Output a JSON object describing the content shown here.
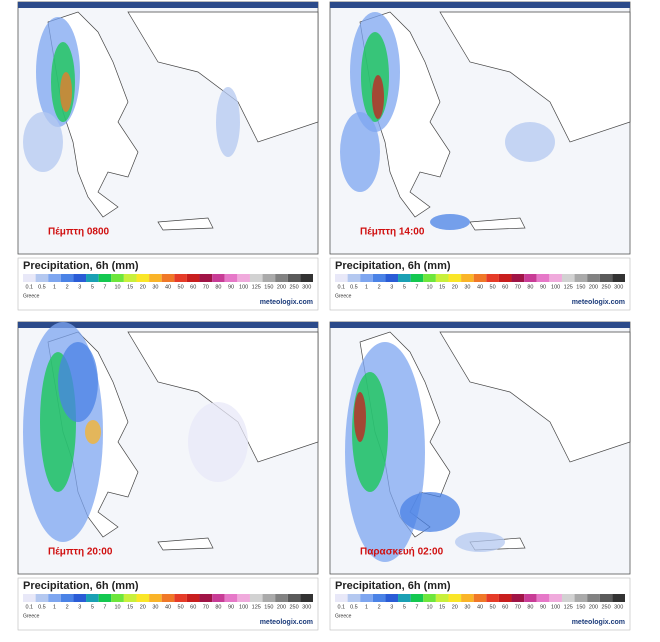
{
  "panels": [
    {
      "label": "Πέμπτη 0800",
      "title": "Precipitation, 6h (mm)",
      "region": "Greece",
      "brand": "meteologix.com"
    },
    {
      "label": "Πέμπτη 14:00",
      "title": "Precipitation, 6h (mm)",
      "region": "Greece",
      "brand": "meteologix.com"
    },
    {
      "label": "Πέμπτη 20:00",
      "title": "Precipitation, 6h (mm)",
      "region": "Greece",
      "brand": "meteologix.com"
    },
    {
      "label": "Παρασκευή 02:00",
      "title": "Precipitation, 6h (mm)",
      "region": "Greece",
      "brand": "meteologix.com"
    }
  ],
  "scale": {
    "labels": [
      "0.1",
      "0.5",
      "1",
      "2",
      "3",
      "5",
      "7",
      "10",
      "15",
      "20",
      "30",
      "40",
      "50",
      "60",
      "70",
      "80",
      "90",
      "100",
      "125",
      "150",
      "200",
      "250",
      "300"
    ],
    "colors": [
      "#e8e8f8",
      "#b4c8f0",
      "#7ea6f0",
      "#4a82e6",
      "#2a5cd6",
      "#1aa0b4",
      "#14c850",
      "#6ee63c",
      "#c8f03c",
      "#fae628",
      "#fab428",
      "#f07828",
      "#e63c28",
      "#c81e1e",
      "#a01446",
      "#c83c96",
      "#e678c8",
      "#f0aadc",
      "#d2d2d2",
      "#aaaaaa",
      "#828282",
      "#5a5a5a",
      "#323232"
    ]
  }
}
